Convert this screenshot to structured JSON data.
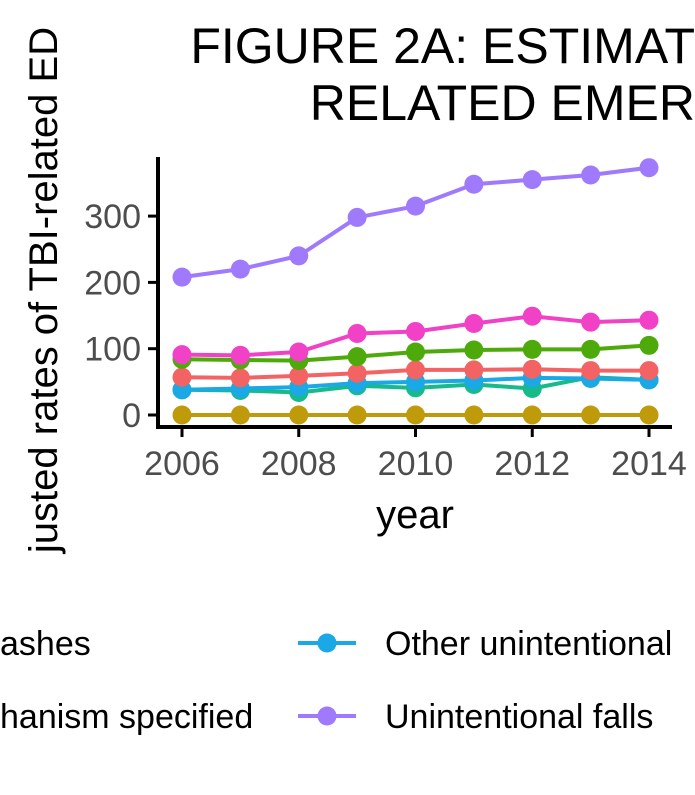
{
  "chart_data": {
    "type": "line",
    "title_lines": [
      "FIGURE 2A: ESTIMAT",
      "RELATED EMER"
    ],
    "xlabel": "year",
    "ylabel": "justed rates of TBI-related ED",
    "xlim": [
      2006,
      2014
    ],
    "ylim": [
      0,
      380
    ],
    "x_ticks": [
      2006,
      2008,
      2010,
      2012,
      2014
    ],
    "y_ticks": [
      0,
      100,
      200,
      300
    ],
    "grid": false,
    "legend_position": "bottom",
    "x": [
      2006,
      2007,
      2008,
      2009,
      2010,
      2011,
      2012,
      2013,
      2014
    ],
    "series": [
      {
        "name": "Unintentional falls",
        "color": "#9f7afc",
        "values": [
          208,
          220,
          240,
          298,
          315,
          348,
          355,
          362,
          373
        ]
      },
      {
        "name": "",
        "color": "#f041c7",
        "values": [
          91,
          90,
          95,
          123,
          126,
          138,
          149,
          140,
          143
        ]
      },
      {
        "name": "",
        "color": "#4daa0a",
        "values": [
          84,
          83,
          82,
          88,
          95,
          98,
          99,
          99,
          105
        ]
      },
      {
        "name": "",
        "color": "#f46363",
        "values": [
          57,
          56,
          59,
          63,
          68,
          68,
          69,
          67,
          67
        ]
      },
      {
        "name": "Other unintentional",
        "color": "#1ba8e6",
        "values": [
          38,
          40,
          42,
          48,
          50,
          52,
          56,
          55,
          53
        ]
      },
      {
        "name": "",
        "color": "#17ba8a",
        "values": [
          38,
          37,
          34,
          44,
          41,
          46,
          40,
          57,
          53
        ]
      },
      {
        "name": "",
        "color": "#bf9a0a",
        "values": [
          0,
          0,
          0,
          0,
          0,
          0,
          0,
          0,
          0
        ]
      }
    ],
    "legend_entries": [
      {
        "label": "ashes",
        "color": "",
        "marker": false
      },
      {
        "label": "Other unintentional",
        "color": "#1ba8e6",
        "marker": true
      },
      {
        "label": "hanism specified",
        "color": "",
        "marker": false
      },
      {
        "label": "Unintentional falls",
        "color": "#9f7afc",
        "marker": true
      }
    ]
  }
}
